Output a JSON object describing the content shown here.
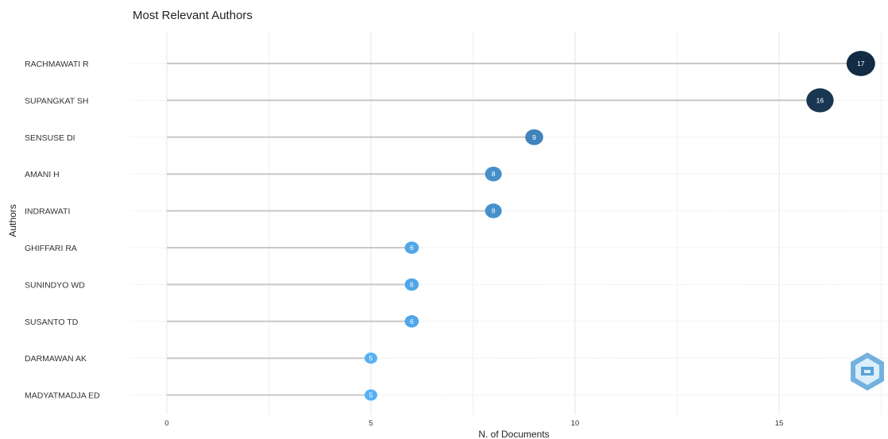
{
  "chart_data": {
    "type": "lollipop",
    "title": "Most Relevant Authors",
    "xlabel": "N. of Documents",
    "ylabel": "Authors",
    "xlim": [
      0,
      17.5
    ],
    "x_ticks": [
      0,
      5,
      10,
      15
    ],
    "grid": true,
    "categories": [
      "RACHMAWATI R",
      "SUPANGKAT SH",
      "SENSUSE DI",
      "AMANI H",
      "INDRAWATI",
      "GHIFFARI RA",
      "SUNINDYO WD",
      "SUSANTO TD",
      "DARMAWAN AK",
      "MADYATMADJA ED"
    ],
    "values": [
      17,
      16,
      9,
      8,
      8,
      6,
      6,
      6,
      5,
      5
    ],
    "color_scale": {
      "low": "#56B1F7",
      "high": "#132B43"
    }
  }
}
